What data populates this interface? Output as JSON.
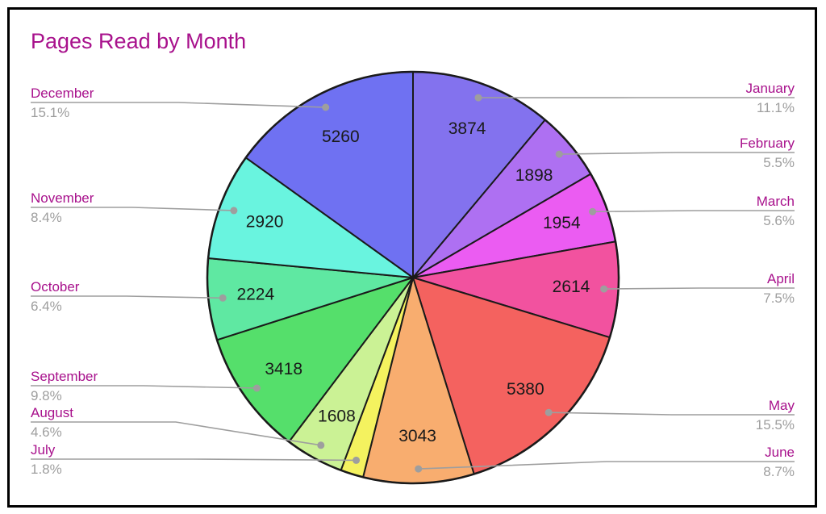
{
  "chart_data": {
    "type": "pie",
    "title": "Pages Read by Month",
    "title_color": "#A8118C",
    "label_color": "#A8118C",
    "percent_color": "#9E9E9E",
    "value_label_color": "#1A1A1A",
    "leader_line_color": "#9E9E9E",
    "slice_border_color": "#1A1A1A",
    "background_color": "#FFFFFF",
    "frame_border_color": "#000000",
    "legend_position": "outside-callouts",
    "start_angle_deg": 0,
    "direction": "clockwise",
    "slices": [
      {
        "label": "January",
        "value": 3874,
        "percent": 11.1,
        "percent_label": "11.1%",
        "color": "#8372EE"
      },
      {
        "label": "February",
        "value": 1898,
        "percent": 5.5,
        "percent_label": "5.5%",
        "color": "#AE70F2"
      },
      {
        "label": "March",
        "value": 1954,
        "percent": 5.6,
        "percent_label": "5.6%",
        "color": "#EB5CF2"
      },
      {
        "label": "April",
        "value": 2614,
        "percent": 7.5,
        "percent_label": "7.5%",
        "color": "#F2529F"
      },
      {
        "label": "May",
        "value": 5380,
        "percent": 15.5,
        "percent_label": "15.5%",
        "color": "#F4625F"
      },
      {
        "label": "June",
        "value": 3043,
        "percent": 8.7,
        "percent_label": "8.7%",
        "color": "#F8AD6F"
      },
      {
        "label": "July",
        "value": null,
        "percent": 1.8,
        "percent_label": "1.8%",
        "color": "#F4F25F"
      },
      {
        "label": "August",
        "value": 1608,
        "percent": 4.6,
        "percent_label": "4.6%",
        "color": "#CBF295"
      },
      {
        "label": "September",
        "value": 3418,
        "percent": 9.8,
        "percent_label": "9.8%",
        "color": "#55DF6B"
      },
      {
        "label": "October",
        "value": 2224,
        "percent": 6.4,
        "percent_label": "6.4%",
        "color": "#5FE8A2"
      },
      {
        "label": "November",
        "value": 2920,
        "percent": 8.4,
        "percent_label": "8.4%",
        "color": "#69F4DF"
      },
      {
        "label": "December",
        "value": 5260,
        "percent": 15.1,
        "percent_label": "15.1%",
        "color": "#6F71F2"
      }
    ]
  }
}
